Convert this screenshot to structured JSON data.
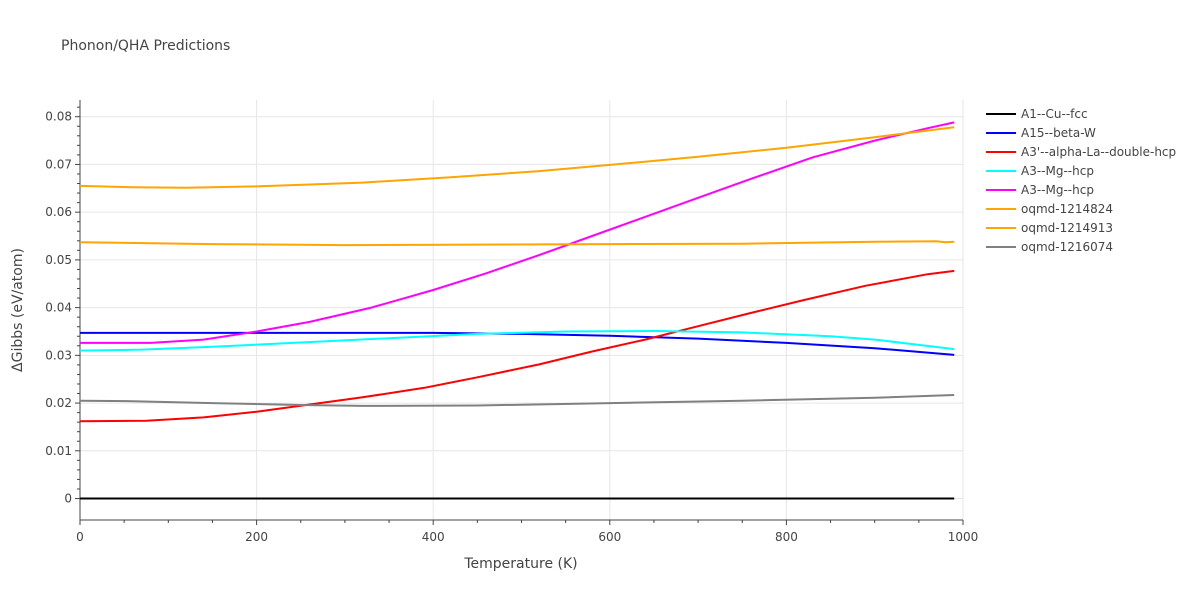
{
  "chart_data": {
    "type": "line",
    "title": "Phonon/QHA Predictions",
    "xlabel": "Temperature (K)",
    "ylabel": "ΔGibbs (eV/atom)",
    "xlim": [
      0,
      1000
    ],
    "ylim": [
      -0.0045,
      0.0835
    ],
    "x_ticks": [
      0,
      200,
      400,
      600,
      800,
      1000
    ],
    "x_tick_labels": [
      "0",
      "200",
      "400",
      "600",
      "800",
      "1000"
    ],
    "y_ticks": [
      0,
      0.01,
      0.02,
      0.03,
      0.04,
      0.05,
      0.06,
      0.07,
      0.08
    ],
    "y_tick_labels": [
      "0",
      "0.01",
      "0.02",
      "0.03",
      "0.04",
      "0.05",
      "0.06",
      "0.07",
      "0.08"
    ],
    "grid": true,
    "legend_position": "right",
    "series": [
      {
        "name": "A1--Cu--fcc",
        "color": "#000000",
        "x": [
          0,
          200,
          400,
          600,
          800,
          990
        ],
        "y": [
          0,
          0,
          0,
          0,
          0,
          0
        ]
      },
      {
        "name": "A15--beta-W",
        "color": "#0000ff",
        "x": [
          0,
          100,
          200,
          300,
          400,
          500,
          600,
          700,
          800,
          900,
          990
        ],
        "y": [
          0.0347,
          0.0347,
          0.0347,
          0.0347,
          0.0347,
          0.0345,
          0.0341,
          0.0335,
          0.0326,
          0.0315,
          0.0301
        ]
      },
      {
        "name": "A3'--alpha-La--double-hcp",
        "color": "#ff0000",
        "x": [
          0,
          75,
          140,
          200,
          260,
          320,
          390,
          450,
          520,
          580,
          640,
          700,
          760,
          820,
          890,
          960,
          990
        ],
        "y": [
          0.0162,
          0.0163,
          0.017,
          0.0182,
          0.0197,
          0.0212,
          0.0232,
          0.0254,
          0.0281,
          0.0308,
          0.0333,
          0.0361,
          0.0389,
          0.0416,
          0.0446,
          0.047,
          0.0477
        ]
      },
      {
        "name": "A3--Mg--hcp",
        "color": "#00ffff",
        "x": [
          0,
          70,
          150,
          250,
          350,
          450,
          550,
          650,
          750,
          850,
          900,
          990
        ],
        "y": [
          0.031,
          0.0312,
          0.0318,
          0.0327,
          0.0336,
          0.0345,
          0.035,
          0.0351,
          0.0348,
          0.034,
          0.0333,
          0.0313
        ]
      },
      {
        "name": "A3--Mg--hcp",
        "color": "#ff00ff",
        "x": [
          0,
          80,
          140,
          200,
          260,
          330,
          400,
          460,
          520,
          580,
          640,
          700,
          760,
          830,
          900,
          960,
          990
        ],
        "y": [
          0.0326,
          0.0326,
          0.0333,
          0.035,
          0.037,
          0.04,
          0.0437,
          0.0472,
          0.051,
          0.055,
          0.059,
          0.063,
          0.067,
          0.0715,
          0.075,
          0.0776,
          0.0788
        ]
      },
      {
        "name": "oqmd-1214824",
        "color": "#ffa500",
        "x": [
          0,
          150,
          300,
          450,
          600,
          750,
          900,
          970,
          980,
          990
        ],
        "y": [
          0.0537,
          0.0533,
          0.0531,
          0.0532,
          0.0533,
          0.0534,
          0.0538,
          0.0539,
          0.0537,
          0.0538
        ]
      },
      {
        "name": "oqmd-1214913",
        "color": "#ffa500",
        "x": [
          0,
          60,
          120,
          200,
          320,
          420,
          520,
          600,
          700,
          800,
          900,
          990
        ],
        "y": [
          0.0655,
          0.0652,
          0.0651,
          0.0654,
          0.0662,
          0.0673,
          0.0686,
          0.0699,
          0.0716,
          0.0735,
          0.0757,
          0.0778
        ]
      },
      {
        "name": "oqmd-1216074",
        "color": "#808080",
        "x": [
          0,
          60,
          150,
          250,
          320,
          450,
          600,
          750,
          900,
          990
        ],
        "y": [
          0.0205,
          0.0204,
          0.02,
          0.0196,
          0.0194,
          0.0195,
          0.02,
          0.0205,
          0.0211,
          0.0217
        ]
      }
    ]
  }
}
